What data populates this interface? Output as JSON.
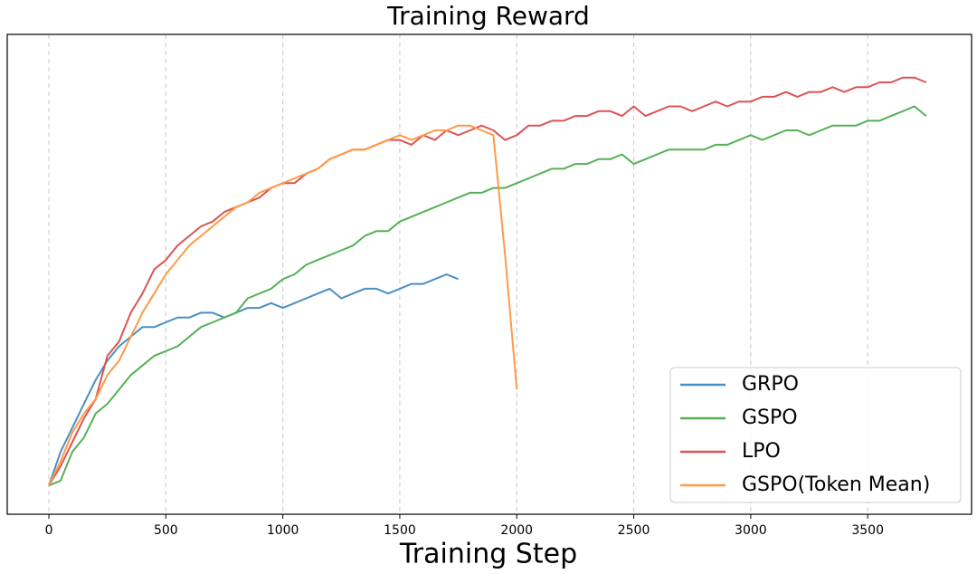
{
  "chart_data": {
    "type": "line",
    "title": "Training Reward",
    "x_label": "Training Step",
    "x": [
      0,
      50,
      100,
      150,
      200,
      250,
      300,
      350,
      400,
      450,
      500,
      550,
      600,
      650,
      700,
      750,
      800,
      850,
      900,
      950,
      1000,
      1050,
      1100,
      1150,
      1200,
      1250,
      1300,
      1350,
      1400,
      1450,
      1500,
      1550,
      1600,
      1650,
      1700,
      1750,
      1800,
      1850,
      1900,
      1950,
      2000,
      2050,
      2100,
      2150,
      2200,
      2250,
      2300,
      2350,
      2400,
      2450,
      2500,
      2550,
      2600,
      2650,
      2700,
      2750,
      2800,
      2850,
      2900,
      2950,
      3000,
      3050,
      3100,
      3150,
      3200,
      3250,
      3300,
      3350,
      3400,
      3450,
      3500,
      3550,
      3600,
      3650,
      3700,
      3750
    ],
    "series": [
      {
        "name": "GRPO",
        "color": "#4a8fc4",
        "values": [
          0.06,
          0.13,
          0.18,
          0.23,
          0.28,
          0.32,
          0.35,
          0.37,
          0.39,
          0.39,
          0.4,
          0.41,
          0.41,
          0.42,
          0.42,
          0.41,
          0.42,
          0.43,
          0.43,
          0.44,
          0.43,
          0.44,
          0.45,
          0.46,
          0.47,
          0.45,
          0.46,
          0.47,
          0.47,
          0.46,
          0.47,
          0.48,
          0.48,
          0.49,
          0.5,
          0.49,
          null,
          null,
          null,
          null,
          null,
          null,
          null,
          null,
          null,
          null,
          null,
          null,
          null,
          null,
          null,
          null,
          null,
          null,
          null,
          null,
          null,
          null,
          null,
          null,
          null,
          null,
          null,
          null,
          null,
          null,
          null,
          null,
          null,
          null,
          null,
          null,
          null,
          null,
          null,
          null
        ]
      },
      {
        "name": "GSPO",
        "color": "#55b155",
        "values": [
          0.06,
          0.07,
          0.13,
          0.16,
          0.21,
          0.23,
          0.26,
          0.29,
          0.31,
          0.33,
          0.34,
          0.35,
          0.37,
          0.39,
          0.4,
          0.41,
          0.42,
          0.45,
          0.46,
          0.47,
          0.49,
          0.5,
          0.52,
          0.53,
          0.54,
          0.55,
          0.56,
          0.58,
          0.59,
          0.59,
          0.61,
          0.62,
          0.63,
          0.64,
          0.65,
          0.66,
          0.67,
          0.67,
          0.68,
          0.68,
          0.69,
          0.7,
          0.71,
          0.72,
          0.72,
          0.73,
          0.73,
          0.74,
          0.74,
          0.75,
          0.73,
          0.74,
          0.75,
          0.76,
          0.76,
          0.76,
          0.76,
          0.77,
          0.77,
          0.78,
          0.79,
          0.78,
          0.79,
          0.8,
          0.8,
          0.79,
          0.8,
          0.81,
          0.81,
          0.81,
          0.82,
          0.82,
          0.83,
          0.84,
          0.85,
          0.83
        ]
      },
      {
        "name": "LPO",
        "color": "#dc5454",
        "values": [
          0.06,
          0.1,
          0.15,
          0.2,
          0.24,
          0.33,
          0.36,
          0.42,
          0.46,
          0.51,
          0.53,
          0.56,
          0.58,
          0.6,
          0.61,
          0.63,
          0.64,
          0.65,
          0.66,
          0.68,
          0.69,
          0.69,
          0.71,
          0.72,
          0.74,
          0.75,
          0.76,
          0.76,
          0.77,
          0.78,
          0.78,
          0.77,
          0.79,
          0.78,
          0.8,
          0.79,
          0.8,
          0.81,
          0.8,
          0.78,
          0.79,
          0.81,
          0.81,
          0.82,
          0.82,
          0.83,
          0.83,
          0.84,
          0.84,
          0.83,
          0.85,
          0.83,
          0.84,
          0.85,
          0.85,
          0.84,
          0.85,
          0.86,
          0.85,
          0.86,
          0.86,
          0.87,
          0.87,
          0.88,
          0.87,
          0.88,
          0.88,
          0.89,
          0.88,
          0.89,
          0.89,
          0.9,
          0.9,
          0.91,
          0.91,
          0.9
        ]
      },
      {
        "name": "GSPO(Token Mean)",
        "color": "#ff9a46",
        "values": [
          0.06,
          0.11,
          0.17,
          0.21,
          0.24,
          0.29,
          0.32,
          0.37,
          0.42,
          0.46,
          0.5,
          0.53,
          0.56,
          0.58,
          0.6,
          0.62,
          0.64,
          0.65,
          0.67,
          0.68,
          0.69,
          0.7,
          0.71,
          0.72,
          0.74,
          0.75,
          0.76,
          0.76,
          0.77,
          0.78,
          0.79,
          0.78,
          0.79,
          0.8,
          0.8,
          0.81,
          0.81,
          0.8,
          0.79,
          0.54,
          0.26,
          null,
          null,
          null,
          null,
          null,
          null,
          null,
          null,
          null,
          null,
          null,
          null,
          null,
          null,
          null,
          null,
          null,
          null,
          null,
          null,
          null,
          null,
          null,
          null,
          null,
          null,
          null,
          null,
          null,
          null,
          null,
          null,
          null,
          null,
          null
        ]
      }
    ],
    "xlim": [
      -178,
      3944
    ],
    "ylim": [
      0,
      1
    ],
    "xticks": [
      0,
      500,
      1000,
      1500,
      2000,
      2500,
      3000,
      3500
    ],
    "grid": "x",
    "legend": "lower right"
  }
}
